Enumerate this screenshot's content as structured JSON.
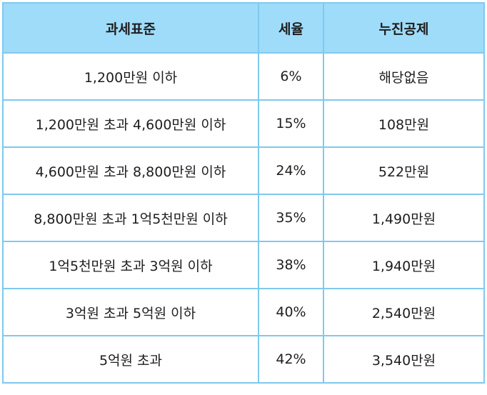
{
  "table": {
    "headers": [
      "과세표준",
      "세율",
      "누진공제"
    ],
    "rows": [
      [
        "1,200만원 이하",
        "6%",
        "해당없음"
      ],
      [
        "1,200만원 초과 4,600만원 이하",
        "15%",
        "108만원"
      ],
      [
        "4,600만원 초과 8,800만원 이하",
        "24%",
        "522만원"
      ],
      [
        "8,800만원 초과 1억5천만원 이하",
        "35%",
        "1,490만원"
      ],
      [
        "1억5천만원 초과 3억원 이하",
        "38%",
        "1,940만원"
      ],
      [
        "3억원 초과 5억원 이하",
        "40%",
        "2,540만원"
      ],
      [
        "5억원 초과",
        "42%",
        "3,540만원"
      ]
    ]
  },
  "colors": {
    "header_bg": "#9fdcfa",
    "border": "#7fc9ee",
    "text": "#1e1e1e"
  }
}
